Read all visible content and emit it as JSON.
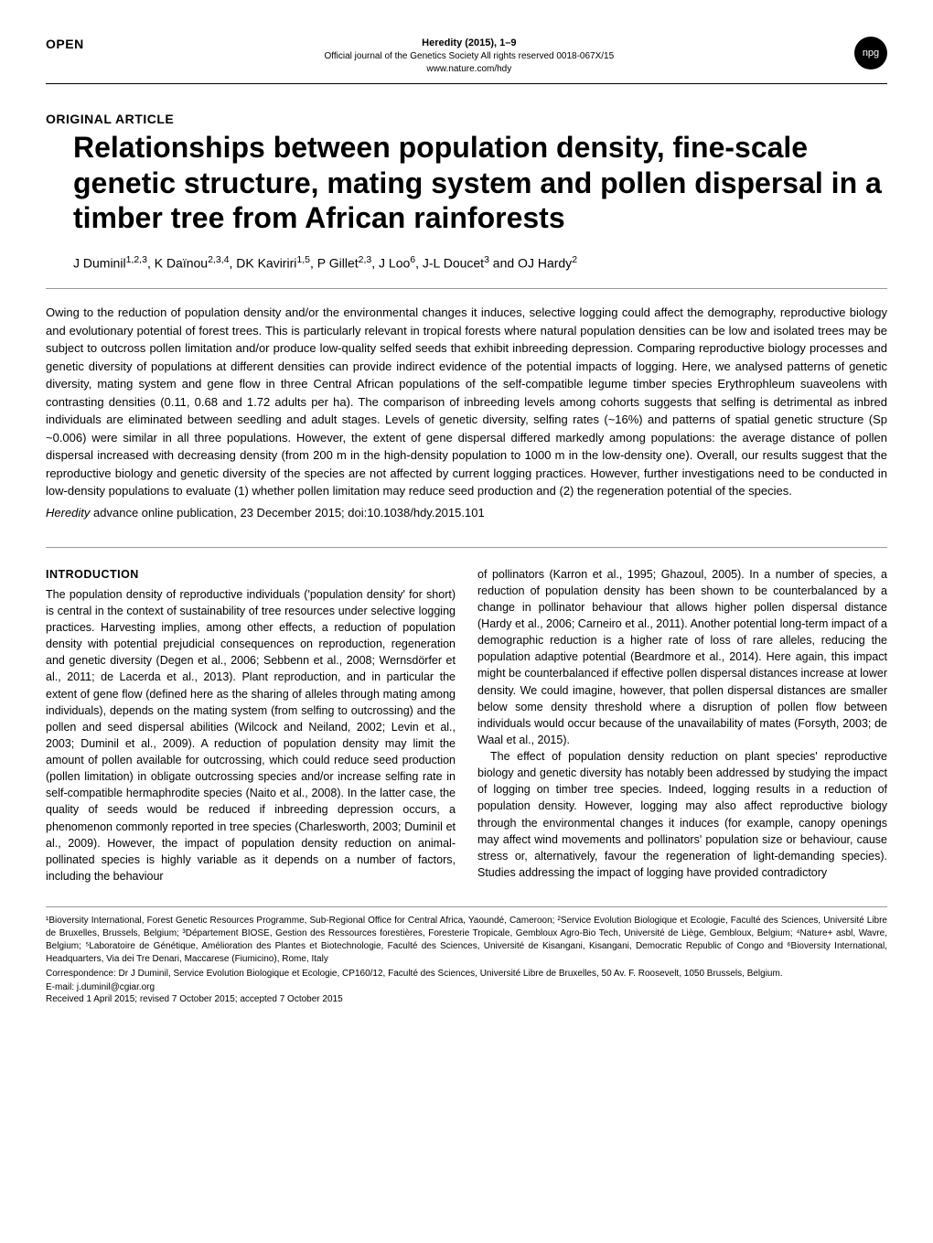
{
  "header": {
    "open_label": "OPEN",
    "journal_title": "Heredity (2015), 1–9",
    "journal_sub": "Official journal of the Genetics Society   All rights reserved 0018-067X/15",
    "journal_url": "www.nature.com/hdy",
    "badge": "npg"
  },
  "article": {
    "type": "ORIGINAL ARTICLE",
    "title": "Relationships between population density, fine-scale genetic structure, mating system and pollen dispersal in a timber tree from African rainforests",
    "authors_html": "J Duminil<sup>1,2,3</sup>, K Daïnou<sup>2,3,4</sup>, DK Kaviriri<sup>1,5</sup>, P Gillet<sup>2,3</sup>, J Loo<sup>6</sup>, J-L Doucet<sup>3</sup> and OJ Hardy<sup>2</sup>"
  },
  "abstract": {
    "text": "Owing to the reduction of population density and/or the environmental changes it induces, selective logging could affect the demography, reproductive biology and evolutionary potential of forest trees. This is particularly relevant in tropical forests where natural population densities can be low and isolated trees may be subject to outcross pollen limitation and/or produce low-quality selfed seeds that exhibit inbreeding depression. Comparing reproductive biology processes and genetic diversity of populations at different densities can provide indirect evidence of the potential impacts of logging. Here, we analysed patterns of genetic diversity, mating system and gene flow in three Central African populations of the self-compatible legume timber species Erythrophleum suaveolens with contrasting densities (0.11, 0.68 and 1.72 adults per ha). The comparison of inbreeding levels among cohorts suggests that selfing is detrimental as inbred individuals are eliminated between seedling and adult stages. Levels of genetic diversity, selfing rates (~16%) and patterns of spatial genetic structure (Sp ~0.006) were similar in all three populations. However, the extent of gene dispersal differed markedly among populations: the average distance of pollen dispersal increased with decreasing density (from 200 m in the high-density population to 1000 m in the low-density one). Overall, our results suggest that the reproductive biology and genetic diversity of the species are not affected by current logging practices. However, further investigations need to be conducted in low-density populations to evaluate (1) whether pollen limitation may reduce seed production and (2) the regeneration potential of the species.",
    "citation_prefix": "Heredity",
    "citation_rest": " advance online publication, 23 December 2015; doi:10.1038/hdy.2015.101"
  },
  "intro": {
    "heading": "INTRODUCTION",
    "col1_p1": "The population density of reproductive individuals ('population density' for short) is central in the context of sustainability of tree resources under selective logging practices. Harvesting implies, among other effects, a reduction of population density with potential prejudicial consequences on reproduction, regeneration and genetic diversity (Degen et al., 2006; Sebbenn et al., 2008; Wernsdörfer et al., 2011; de Lacerda et al., 2013). Plant reproduction, and in particular the extent of gene flow (defined here as the sharing of alleles through mating among individuals), depends on the mating system (from selfing to outcrossing) and the pollen and seed dispersal abilities (Wilcock and Neiland, 2002; Levin et al., 2003; Duminil et al., 2009). A reduction of population density may limit the amount of pollen available for outcrossing, which could reduce seed production (pollen limitation) in obligate outcrossing species and/or increase selfing rate in self-compatible hermaphrodite species (Naito et al., 2008). In the latter case, the quality of seeds would be reduced if inbreeding depression occurs, a phenomenon commonly reported in tree species (Charlesworth, 2003; Duminil et al., 2009). However, the impact of population density reduction on animal-pollinated species is highly variable as it depends on a number of factors, including the behaviour",
    "col2_p1": "of pollinators (Karron et al., 1995; Ghazoul, 2005). In a number of species, a reduction of population density has been shown to be counterbalanced by a change in pollinator behaviour that allows higher pollen dispersal distance (Hardy et al., 2006; Carneiro et al., 2011). Another potential long-term impact of a demographic reduction is a higher rate of loss of rare alleles, reducing the population adaptive potential (Beardmore et al., 2014). Here again, this impact might be counterbalanced if effective pollen dispersal distances increase at lower density. We could imagine, however, that pollen dispersal distances are smaller below some density threshold where a disruption of pollen flow between individuals would occur because of the unavailability of mates (Forsyth, 2003; de Waal et al., 2015).",
    "col2_p2": "The effect of population density reduction on plant species' reproductive biology and genetic diversity has notably been addressed by studying the impact of logging on timber tree species. Indeed, logging results in a reduction of population density. However, logging may also affect reproductive biology through the environmental changes it induces (for example, canopy openings may affect wind movements and pollinators' population size or behaviour, cause stress or, alternatively, favour the regeneration of light-demanding species). Studies addressing the impact of logging have provided contradictory"
  },
  "footer": {
    "affiliations": "¹Bioversity International, Forest Genetic Resources Programme, Sub-Regional Office for Central Africa, Yaoundé, Cameroon; ²Service Evolution Biologique et Ecologie, Faculté des Sciences, Université Libre de Bruxelles, Brussels, Belgium; ³Département BIOSE, Gestion des Ressources forestières, Foresterie Tropicale, Gembloux Agro-Bio Tech, Université de Liège, Gembloux, Belgium; ⁴Nature+ asbl, Wavre, Belgium; ⁵Laboratoire de Génétique, Amélioration des Plantes et Biotechnologie, Faculté des Sciences, Université de Kisangani, Kisangani, Democratic Republic of Congo and ⁶Bioversity International, Headquarters, Via dei Tre Denari, Maccarese (Fiumicino), Rome, Italy",
    "correspondence": "Correspondence: Dr J Duminil, Service Evolution Biologique et Ecologie, CP160/12, Faculté des Sciences, Université Libre de Bruxelles, 50 Av. F. Roosevelt, 1050 Brussels, Belgium.",
    "email": "E-mail: j.duminil@cgiar.org",
    "received": "Received 1 April 2015; revised 7 October 2015; accepted 7 October 2015"
  },
  "style": {
    "background_color": "#ffffff",
    "text_color": "#000000",
    "title_fontsize": 32,
    "body_fontsize": 12.5,
    "abstract_fontsize": 13,
    "footer_fontsize": 10
  }
}
